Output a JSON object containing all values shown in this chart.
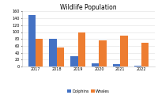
{
  "title": "Wildlife Population",
  "years": [
    "2017",
    "2018",
    "2019",
    "2020",
    "2021",
    "2022"
  ],
  "dolphins": [
    150,
    80,
    30,
    10,
    7,
    3
  ],
  "whales": [
    80,
    55,
    100,
    75,
    90,
    68
  ],
  "dolphin_color": "#4472C4",
  "whale_color": "#ED7D31",
  "ylim": [
    0,
    160
  ],
  "yticks": [
    0,
    20,
    40,
    60,
    80,
    100,
    120,
    140,
    160
  ],
  "legend_labels": [
    "Dolphins",
    "Whales"
  ],
  "title_fontsize": 5.5,
  "tick_fontsize": 3.5,
  "legend_fontsize": 3.5,
  "bar_width": 0.35
}
